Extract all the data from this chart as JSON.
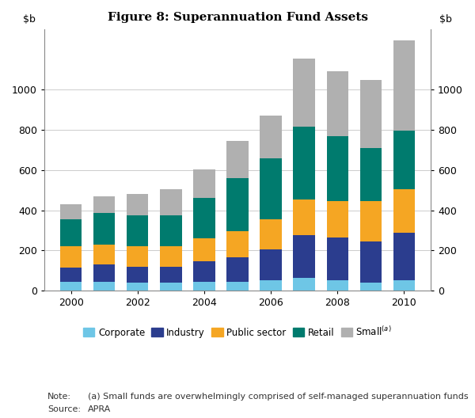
{
  "title": "Figure 8: Superannuation Fund Assets",
  "years": [
    2000,
    2001,
    2002,
    2003,
    2004,
    2005,
    2006,
    2007,
    2008,
    2009,
    2010
  ],
  "categories": [
    "Corporate",
    "Industry",
    "Public sector",
    "Retail",
    "Small"
  ],
  "colors": [
    "#6ec6e6",
    "#2b3d8e",
    "#f5a623",
    "#007b6e",
    "#b0b0b0"
  ],
  "data": {
    "Corporate": [
      45,
      45,
      40,
      40,
      45,
      45,
      50,
      65,
      50,
      40,
      50
    ],
    "Industry": [
      70,
      85,
      80,
      80,
      100,
      120,
      155,
      210,
      215,
      205,
      240
    ],
    "Public sector": [
      105,
      100,
      100,
      100,
      115,
      130,
      150,
      180,
      180,
      200,
      215
    ],
    "Retail": [
      135,
      155,
      155,
      155,
      200,
      265,
      305,
      360,
      325,
      265,
      290
    ],
    "Small": [
      75,
      85,
      105,
      130,
      145,
      185,
      210,
      340,
      320,
      340,
      450
    ]
  },
  "ylim": [
    0,
    1300
  ],
  "yticks": [
    0,
    200,
    400,
    600,
    800,
    1000
  ],
  "ylabel_left": "$b",
  "ylabel_right": "$b",
  "note_label": "Note:",
  "note_text": "(a) Small funds are overwhelmingly comprised of self-managed superannuation funds",
  "source_label": "Source:",
  "source_text": "APRA",
  "background_color": "#ffffff",
  "grid_color": "#cccccc",
  "bar_width": 0.65,
  "figsize": [
    6.0,
    5.28
  ],
  "dpi": 100
}
